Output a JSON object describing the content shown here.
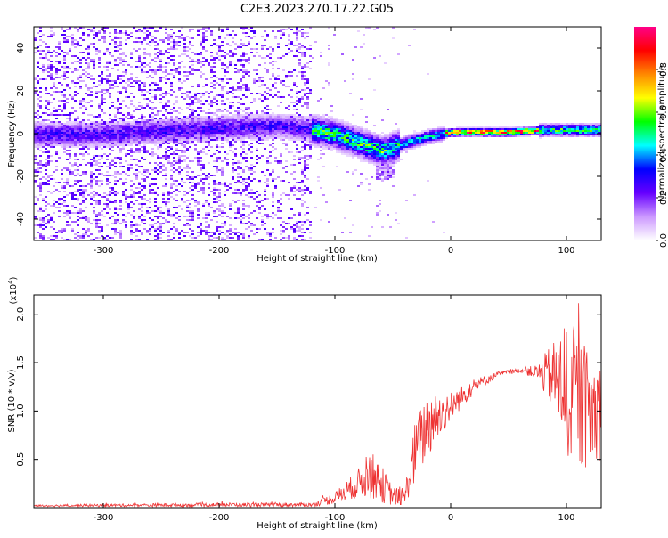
{
  "title": "C2E3.2023.270.17.22.G05",
  "chart_data": [
    {
      "type": "heatmap",
      "name": "spectrogram",
      "xlabel": "Height of straight line (km)",
      "ylabel": "Frequency (Hz)",
      "xlim": [
        -360,
        130
      ],
      "ylim": [
        -50,
        50
      ],
      "xticks": [
        -300,
        -200,
        -100,
        0,
        100
      ],
      "yticks": [
        -40,
        -20,
        0,
        20,
        40
      ],
      "xtick_labels": [
        "-300",
        "-200",
        "-100",
        "0",
        "100"
      ],
      "ytick_labels": [
        "-40",
        "-20",
        "0",
        "20",
        "40"
      ],
      "colorbar": {
        "label": "Normalized spectral amplitude",
        "range": [
          0,
          1
        ],
        "ticks": [
          0.0,
          0.2,
          0.4,
          0.6,
          0.8
        ],
        "tick_labels": [
          "0.0",
          "0.2",
          "0.4",
          "0.6",
          "0.8"
        ],
        "colormap": [
          "#ffffff",
          "#cc99ff",
          "#6600ff",
          "#0000ff",
          "#00ffff",
          "#00ff00",
          "#ffff00",
          "#ff8800",
          "#ff0000",
          "#ff0088"
        ]
      },
      "signal_center": [
        {
          "x": -360,
          "y": 0
        },
        {
          "x": -300,
          "y": 0
        },
        {
          "x": -200,
          "y": 3
        },
        {
          "x": -150,
          "y": 4
        },
        {
          "x": -120,
          "y": 2
        },
        {
          "x": -100,
          "y": 0
        },
        {
          "x": -80,
          "y": -4
        },
        {
          "x": -60,
          "y": -8
        },
        {
          "x": -50,
          "y": -6
        },
        {
          "x": -40,
          "y": -4
        },
        {
          "x": -20,
          "y": -1
        },
        {
          "x": 0,
          "y": 1
        },
        {
          "x": 50,
          "y": 1
        },
        {
          "x": 80,
          "y": 2
        },
        {
          "x": 130,
          "y": 2
        }
      ]
    },
    {
      "type": "line",
      "name": "snr",
      "xlabel": "Height of straight line (km)",
      "ylabel": "SNR (10 * v/v)",
      "scale_label": "(x10",
      "scale_exp": "4",
      "scale_close": ")",
      "xlim": [
        -360,
        130
      ],
      "ylim": [
        0,
        2.2
      ],
      "xticks": [
        -300,
        -200,
        -100,
        0,
        100
      ],
      "yticks": [
        0.5,
        1.0,
        1.5,
        2.0
      ],
      "xtick_labels": [
        "-300",
        "-200",
        "-100",
        "0",
        "100"
      ],
      "ytick_labels": [
        "0.5",
        "1.0",
        "1.5",
        "2.0"
      ],
      "color": "#ee3333",
      "envelope": [
        {
          "x": -360,
          "mean": 0.02,
          "noise": 0.01
        },
        {
          "x": -200,
          "mean": 0.03,
          "noise": 0.02
        },
        {
          "x": -120,
          "mean": 0.03,
          "noise": 0.02
        },
        {
          "x": -100,
          "mean": 0.1,
          "noise": 0.06
        },
        {
          "x": -80,
          "mean": 0.25,
          "noise": 0.15
        },
        {
          "x": -70,
          "mean": 0.35,
          "noise": 0.25
        },
        {
          "x": -60,
          "mean": 0.25,
          "noise": 0.2
        },
        {
          "x": -50,
          "mean": 0.12,
          "noise": 0.1
        },
        {
          "x": -40,
          "mean": 0.1,
          "noise": 0.08
        },
        {
          "x": -30,
          "mean": 0.6,
          "noise": 0.35
        },
        {
          "x": -20,
          "mean": 0.85,
          "noise": 0.35
        },
        {
          "x": -10,
          "mean": 0.95,
          "noise": 0.25
        },
        {
          "x": 0,
          "mean": 1.05,
          "noise": 0.15
        },
        {
          "x": 20,
          "mean": 1.25,
          "noise": 0.08
        },
        {
          "x": 40,
          "mean": 1.38,
          "noise": 0.03
        },
        {
          "x": 60,
          "mean": 1.42,
          "noise": 0.02
        },
        {
          "x": 75,
          "mean": 1.4,
          "noise": 0.08
        },
        {
          "x": 90,
          "mean": 1.35,
          "noise": 0.4
        },
        {
          "x": 100,
          "mean": 1.2,
          "noise": 0.7
        },
        {
          "x": 110,
          "mean": 1.1,
          "noise": 0.7
        },
        {
          "x": 120,
          "mean": 1.0,
          "noise": 0.6
        },
        {
          "x": 130,
          "mean": 1.0,
          "noise": 0.5
        }
      ]
    }
  ]
}
